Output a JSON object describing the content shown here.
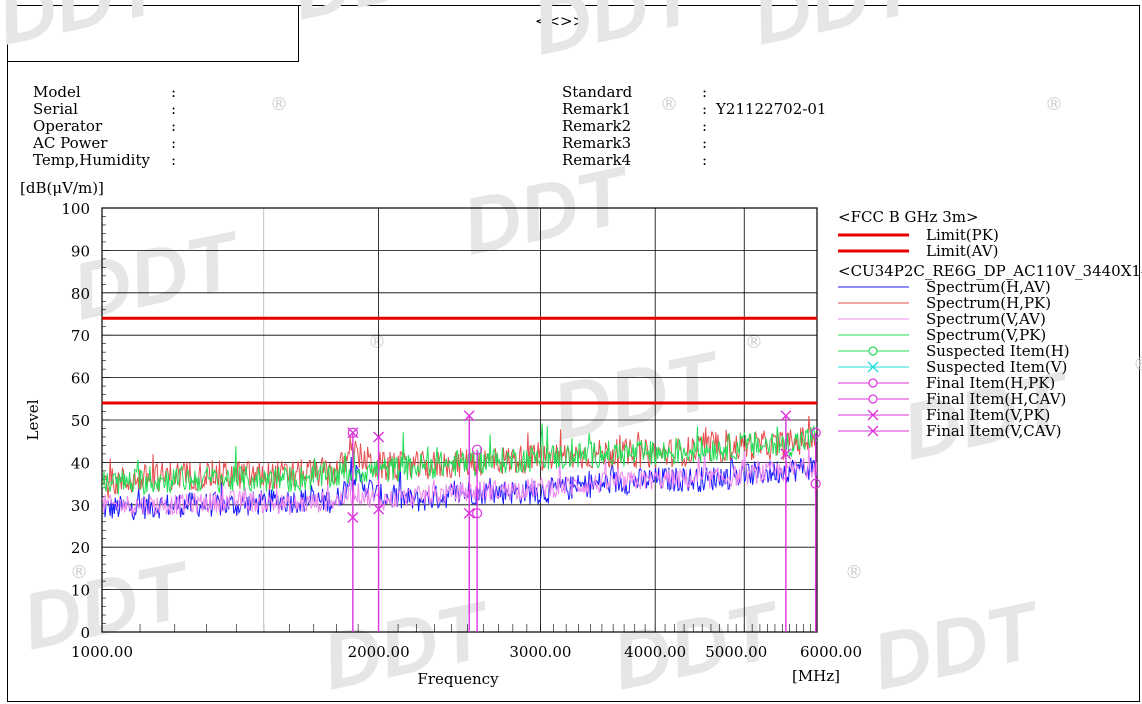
{
  "header": {
    "title": "<<>>",
    "left_fields": [
      {
        "label": "Model",
        "value": ""
      },
      {
        "label": "Serial",
        "value": ""
      },
      {
        "label": "Operator",
        "value": ""
      },
      {
        "label": "AC Power",
        "value": ""
      },
      {
        "label": "Temp,Humidity",
        "value": ""
      }
    ],
    "right_fields": [
      {
        "label": "Standard",
        "value": ""
      },
      {
        "label": "Remark1",
        "value": "Y21122702-01"
      },
      {
        "label": "Remark2",
        "value": ""
      },
      {
        "label": "Remark3",
        "value": ""
      },
      {
        "label": "Remark4",
        "value": ""
      }
    ]
  },
  "watermark": {
    "text": "DDT",
    "mark": "®",
    "color": "#e6e6e6"
  },
  "chart_data": {
    "type": "line",
    "ylabel_unit": "[dB(μV/m)]",
    "ylabel": "Level",
    "xlabel": "Frequency",
    "xunit": "[MHz]",
    "xscale": "log",
    "xlim": [
      1000,
      6000
    ],
    "ylim": [
      0,
      100
    ],
    "yticks": [
      0,
      10,
      20,
      30,
      40,
      50,
      60,
      70,
      80,
      90,
      100
    ],
    "xticks": [
      1000,
      2000,
      3000,
      4000,
      5000,
      6000
    ],
    "xtick_labels": [
      "1000.00",
      "2000.00",
      "3000.00",
      "4000.00",
      "5000.00",
      "6000.00"
    ],
    "grid": true,
    "legend_position": "right",
    "legend_group1": "<FCC B GHz 3m>",
    "legend_group2": "<CU34P2C_RE6G_DP_AC110V_3440X1440",
    "colors": {
      "limit": "#e60000",
      "h_av": "#1a1aff",
      "h_pk": "#e64d4d",
      "v_av": "#ee88ee",
      "v_pk": "#22dd55",
      "susp_h": "#22dd55",
      "susp_v": "#22dddd",
      "final": "#dd33dd"
    },
    "limits": [
      {
        "name": "Limit(PK)",
        "value": 74
      },
      {
        "name": "Limit(AV)",
        "value": 54
      }
    ],
    "series": [
      {
        "name": "Spectrum(H,AV)",
        "x": [
          1000,
          1200,
          1400,
          1600,
          1800,
          1880,
          2000,
          2200,
          2500,
          3000,
          3500,
          4000,
          4500,
          5000,
          5500,
          6000
        ],
        "values": [
          29,
          30,
          30,
          31,
          31,
          37,
          32,
          31,
          33,
          33,
          35,
          36,
          36,
          37,
          38,
          39
        ]
      },
      {
        "name": "Spectrum(H,PK)",
        "x": [
          1000,
          1200,
          1400,
          1600,
          1800,
          1880,
          2000,
          2200,
          2500,
          3000,
          3500,
          4000,
          4500,
          5000,
          5500,
          6000
        ],
        "values": [
          35,
          37,
          37,
          37,
          38,
          42,
          39,
          39,
          40,
          41,
          42,
          42,
          43,
          44,
          44,
          46
        ]
      },
      {
        "name": "Spectrum(V,AV)",
        "x": [
          1000,
          1200,
          1400,
          1600,
          1800,
          1880,
          2000,
          2200,
          2500,
          3000,
          3500,
          4000,
          4500,
          5000,
          5500,
          6000
        ],
        "values": [
          30,
          30,
          31,
          30,
          31,
          33,
          31,
          32,
          33,
          34,
          35,
          36,
          36,
          37,
          38,
          39
        ]
      },
      {
        "name": "Spectrum(V,PK)",
        "x": [
          1000,
          1200,
          1400,
          1600,
          1800,
          1880,
          2000,
          2200,
          2500,
          3000,
          3500,
          4000,
          4500,
          5000,
          5500,
          6000
        ],
        "values": [
          35,
          36,
          36,
          36,
          37,
          38,
          38,
          39,
          40,
          41,
          42,
          42,
          43,
          44,
          44,
          46
        ]
      }
    ],
    "legend_extra": [
      {
        "name": "Suspected Item(H)",
        "marker": "circle"
      },
      {
        "name": "Suspected Item(V)",
        "marker": "cross"
      },
      {
        "name": "Final Item(H,PK)",
        "marker": "circle"
      },
      {
        "name": "Final Item(H,CAV)",
        "marker": "circle"
      },
      {
        "name": "Final Item(V,PK)",
        "marker": "cross"
      },
      {
        "name": "Final Item(V,CAV)",
        "marker": "cross"
      }
    ],
    "final_items": [
      {
        "x": 1875,
        "y": 47,
        "marker": "circle"
      },
      {
        "x": 1875,
        "y": 47,
        "marker": "cross"
      },
      {
        "x": 1875,
        "y": 27,
        "marker": "cross"
      },
      {
        "x": 2000,
        "y": 46,
        "marker": "cross"
      },
      {
        "x": 2000,
        "y": 29,
        "marker": "cross"
      },
      {
        "x": 2510,
        "y": 51,
        "marker": "cross"
      },
      {
        "x": 2510,
        "y": 28,
        "marker": "cross"
      },
      {
        "x": 2560,
        "y": 43,
        "marker": "circle"
      },
      {
        "x": 2560,
        "y": 28,
        "marker": "circle"
      },
      {
        "x": 5550,
        "y": 51,
        "marker": "cross"
      },
      {
        "x": 5550,
        "y": 42,
        "marker": "cross"
      },
      {
        "x": 5980,
        "y": 47,
        "marker": "circle"
      },
      {
        "x": 5980,
        "y": 35,
        "marker": "circle"
      }
    ]
  }
}
